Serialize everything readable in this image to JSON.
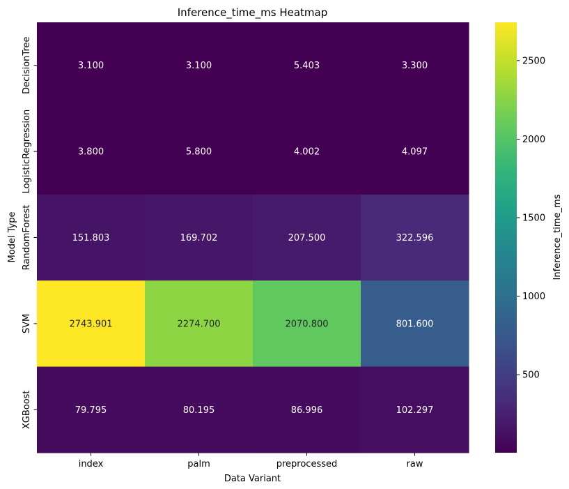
{
  "chart_data": {
    "type": "heatmap",
    "title": "Inference_time_ms Heatmap",
    "xlabel": "Data Variant",
    "ylabel": "Model Type",
    "x_categories": [
      "index",
      "palm",
      "preprocessed",
      "raw"
    ],
    "y_categories": [
      "DecisionTree",
      "LogisticRegression",
      "RandomForest",
      "SVM",
      "XGBoost"
    ],
    "values": [
      [
        3.1,
        3.1,
        5.403,
        3.3
      ],
      [
        3.8,
        5.8,
        4.002,
        4.097
      ],
      [
        151.803,
        169.702,
        207.5,
        322.596
      ],
      [
        2743.901,
        2274.7,
        2070.8,
        801.6
      ],
      [
        79.795,
        80.195,
        86.996,
        102.297
      ]
    ],
    "cell_labels": [
      [
        "3.100",
        "3.100",
        "5.403",
        "3.300"
      ],
      [
        "3.800",
        "5.800",
        "4.002",
        "4.097"
      ],
      [
        "151.803",
        "169.702",
        "207.500",
        "322.596"
      ],
      [
        "2743.901",
        "2274.700",
        "2070.800",
        "801.600"
      ],
      [
        "79.795",
        "80.195",
        "86.996",
        "102.297"
      ]
    ],
    "colorbar": {
      "label": "Inference_time_ms",
      "colormap": "viridis",
      "vmin": 3.1,
      "vmax": 2743.901,
      "ticks": [
        500,
        1000,
        1500,
        2000,
        2500
      ],
      "tick_labels": [
        "500",
        "1000",
        "1500",
        "2000",
        "2500"
      ]
    },
    "grid": false,
    "legend": "colorbar-right"
  }
}
